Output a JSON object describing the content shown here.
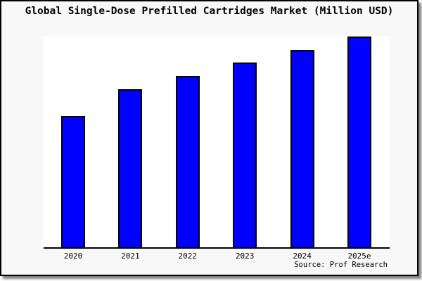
{
  "title": "Global Single-Dose Prefilled Cartridges Market (Million USD)",
  "source_credit": "Source: Prof Research",
  "colors": {
    "bar_fill": "#0000ff",
    "bar_border": "#000000",
    "canvas_background": "#f8f8f8",
    "plot_background": "#ffffff",
    "axis_line": "#000000",
    "text": "#000000"
  },
  "chart_data": {
    "type": "bar",
    "title": "Global Single-Dose Prefilled Cartridges Market (Million USD)",
    "categories": [
      "2020",
      "2021",
      "2022",
      "2023",
      "2024",
      "2025e"
    ],
    "values": [
      62.5,
      75.0,
      81.3,
      87.7,
      93.7,
      100.0
    ],
    "values_note": "y-axis has no tick labels or gridlines; values are relative bar heights estimated from pixels, normalized so 2025e = 100",
    "xlabel": "",
    "ylabel": "",
    "ylim": [
      0,
      100
    ],
    "grid": false,
    "legend": false,
    "bar_color": "#0000ff"
  }
}
